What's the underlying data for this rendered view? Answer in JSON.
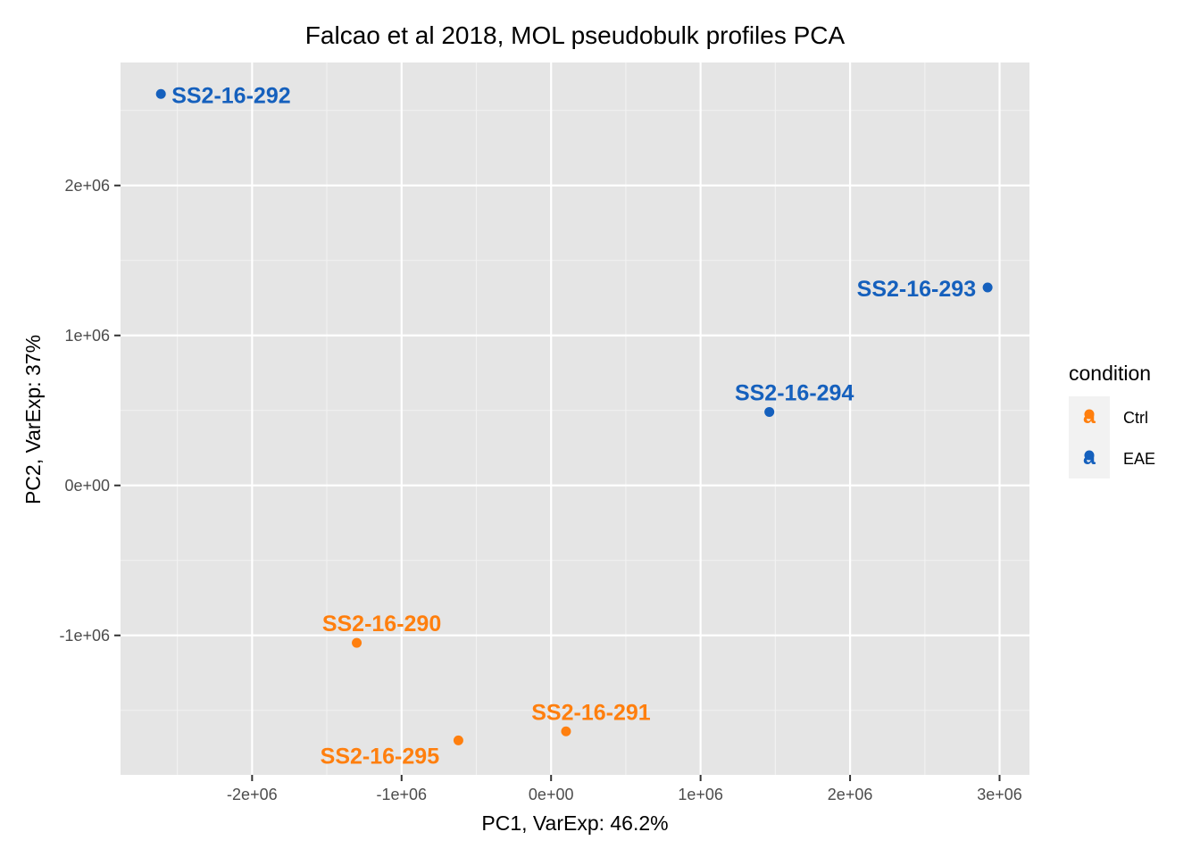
{
  "chart_data": {
    "type": "scatter",
    "title": "Falcao et al 2018, MOL pseudobulk profiles PCA",
    "xlabel": "PC1, VarExp: 46.2%",
    "ylabel": "PC2, VarExp: 37%",
    "xlim": [
      -2880000,
      3200000
    ],
    "ylim": [
      -1930000,
      2820000
    ],
    "x_ticks": [
      -2000000,
      -1000000,
      0,
      1000000,
      2000000,
      3000000
    ],
    "x_tick_labels": [
      "-2e+06",
      "-1e+06",
      "0e+00",
      "1e+06",
      "2e+06",
      "3e+06"
    ],
    "y_ticks": [
      -1000000,
      0,
      1000000,
      2000000
    ],
    "y_tick_labels": [
      "-1e+06",
      "0e+00",
      "1e+06",
      "2e+06"
    ],
    "grid": true,
    "legend": {
      "title": "condition",
      "placement": "right",
      "entries": [
        {
          "name": "Ctrl",
          "color": "#FF7F0E"
        },
        {
          "name": "EAE",
          "color": "#1560BD"
        }
      ]
    },
    "points": [
      {
        "label": "SS2-16-292",
        "x": -2610000,
        "y": 2610000,
        "condition": "EAE"
      },
      {
        "label": "SS2-16-293",
        "x": 2920000,
        "y": 1320000,
        "condition": "EAE"
      },
      {
        "label": "SS2-16-294",
        "x": 1460000,
        "y": 490000,
        "condition": "EAE"
      },
      {
        "label": "SS2-16-290",
        "x": -1300000,
        "y": -1050000,
        "condition": "Ctrl"
      },
      {
        "label": "SS2-16-291",
        "x": 100000,
        "y": -1640000,
        "condition": "Ctrl"
      },
      {
        "label": "SS2-16-295",
        "x": -620000,
        "y": -1700000,
        "condition": "Ctrl"
      }
    ]
  }
}
